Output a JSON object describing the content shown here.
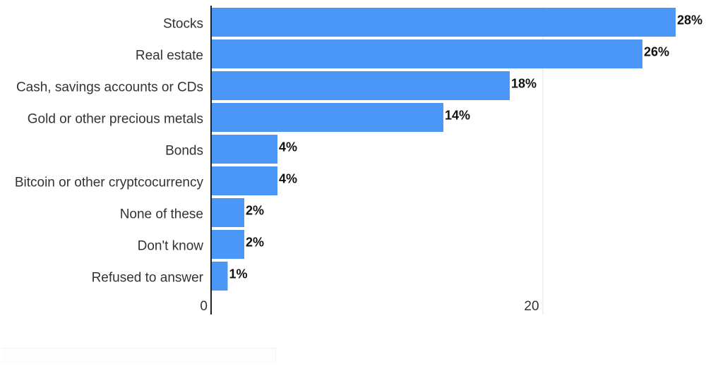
{
  "chart_data": {
    "type": "bar",
    "orientation": "horizontal",
    "categories": [
      "Stocks",
      "Real estate",
      "Cash, savings accounts or CDs",
      "Gold or other precious metals",
      "Bonds",
      "Bitcoin or other cryptcocurrency",
      "None of these",
      "Don't know",
      "Refused to answer"
    ],
    "values": [
      28,
      26,
      18,
      14,
      4,
      4,
      2,
      2,
      1
    ],
    "value_labels": [
      "28%",
      "26%",
      "18%",
      "14%",
      "4%",
      "4%",
      "2%",
      "2%",
      "1%"
    ],
    "x_ticks": [
      "0",
      "20"
    ],
    "xlim": [
      0,
      28
    ],
    "title": "",
    "xlabel": "",
    "ylabel": "",
    "grid": true,
    "legend": "none",
    "bar_color": "#4a97f8"
  }
}
